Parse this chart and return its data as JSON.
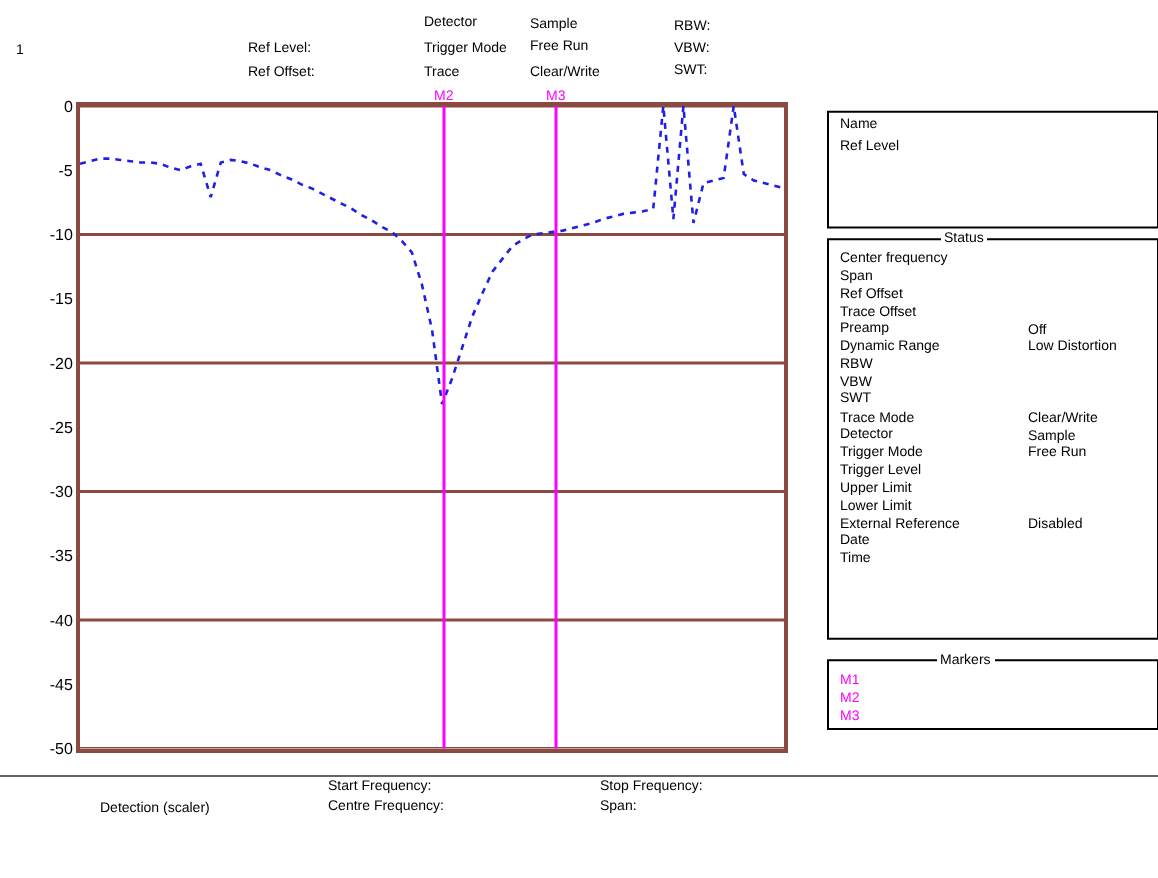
{
  "chart_data": {
    "type": "line",
    "categories": [
      null,
      null,
      null,
      null,
      null,
      null,
      null,
      null,
      null,
      null,
      null,
      null,
      null,
      null,
      null,
      null,
      null,
      null,
      null,
      null,
      null,
      null,
      null,
      null,
      null,
      null,
      null,
      null,
      null,
      null,
      null,
      null,
      null,
      null,
      null,
      null,
      null,
      null,
      null,
      null,
      null,
      null,
      null,
      null,
      null,
      null,
      null,
      null,
      null,
      null,
      null,
      null,
      null,
      null,
      null,
      null,
      null,
      null,
      null,
      null,
      null,
      null,
      null,
      null,
      null,
      null,
      null,
      null,
      null,
      null,
      null
    ],
    "series": [
      {
        "color": "#1f1fe6",
        "values": [
          -4.5,
          -4.3,
          -4.1,
          -4.1,
          -4.2,
          -4.3,
          -4.4,
          -4.4,
          -4.5,
          -4.8,
          -5.0,
          -4.7,
          -4.5,
          -7.1,
          -4.4,
          -4.2,
          -4.3,
          -4.5,
          -4.8,
          -5.0,
          -5.4,
          -5.7,
          -6.1,
          -6.4,
          -6.8,
          -7.2,
          -7.6,
          -8.0,
          -8.5,
          -8.9,
          -9.4,
          -9.8,
          -10.5,
          -11.4,
          -13.9,
          -17.4,
          -23.2,
          -21.2,
          -18.8,
          -16.4,
          -14.6,
          -12.9,
          -11.9,
          -10.9,
          -10.4,
          -10.0,
          -9.9,
          -9.8,
          -9.7,
          -9.5,
          -9.3,
          -9.1,
          -8.8,
          -8.6,
          -8.4,
          -8.3,
          -8.2,
          -8.0,
          0,
          -8.8,
          0,
          -9.1,
          -6.0,
          -5.8,
          -5.6,
          0,
          -5.3,
          -5.8,
          -6.0,
          -6.2,
          -6.4
        ]
      }
    ],
    "ylim": [
      -50,
      0
    ],
    "yticks": [
      0,
      -5,
      -10,
      -15,
      -20,
      -25,
      -30,
      -35,
      -40,
      -45,
      -50
    ],
    "grid": "y",
    "tick_labels": "y",
    "marker": "none",
    "line_style": "dotted",
    "annotations": [
      "1",
      "Ref Level:",
      "Ref Offset:",
      "Detector",
      "Trigger Mode",
      "Trace",
      "Sample",
      "Free Run",
      "Clear/Write",
      "RBW:",
      "VBW:",
      "SWT:",
      "Detection (scaler)",
      "Start Frequency:",
      "Centre Frequency:",
      "Stop Frequency:",
      "Span:",
      "Name",
      "Ref Level",
      "Status",
      "Center frequency",
      "Span",
      "Ref Offset",
      "Trace Offset",
      "Preamp",
      "Off",
      "Dynamic Range",
      "Low Distortion",
      "RBW",
      "VBW",
      "SWT",
      "Trace Mode",
      "Clear/Write",
      "Detector",
      "Sample",
      "Trigger Mode",
      "Free Run",
      "Trigger Level",
      "Upper Limit",
      "Lower Limit",
      "External Reference",
      "Disabled",
      "Date",
      "Time",
      "Markers",
      "M1",
      "M2",
      "M3",
      "M2",
      "M3"
    ]
  }
}
